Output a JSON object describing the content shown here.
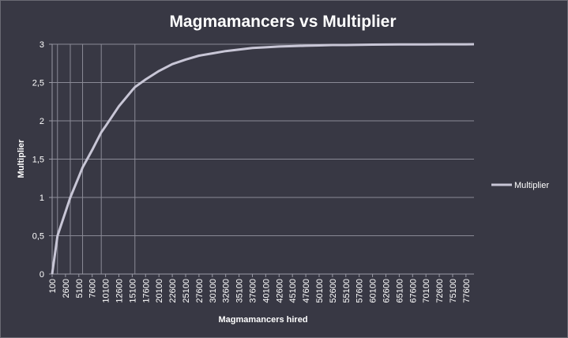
{
  "chart_data": {
    "type": "line",
    "title": "Magmamancers vs Multiplier",
    "xlabel": "Magmamancers  hired",
    "ylabel": "Multiplier",
    "ylim": [
      0,
      3
    ],
    "yticks": [
      "0",
      "0,5",
      "1",
      "1,5",
      "2",
      "2,5",
      "3"
    ],
    "x_tick_labels": [
      "100",
      "2600",
      "5100",
      "7600",
      "10100",
      "12600",
      "15100",
      "17600",
      "20100",
      "22600",
      "25100",
      "27600",
      "30100",
      "32600",
      "35100",
      "37600",
      "40100",
      "42600",
      "45100",
      "47600",
      "50100",
      "52600",
      "55100",
      "57600",
      "60100",
      "62600",
      "65100",
      "67600",
      "70100",
      "72600",
      "75100",
      "77600"
    ],
    "xlim": [
      100,
      79100
    ],
    "vertical_gridlines_x": [
      1100,
      3500,
      5800,
      9300,
      15600
    ],
    "grid": true,
    "legend_position": "right",
    "series": [
      {
        "name": "Multiplier",
        "color": "#c8c6d6",
        "x": [
          100,
          1100,
          2600,
          3500,
          5100,
          5800,
          7600,
          9300,
          10100,
          12600,
          15100,
          15600,
          17600,
          20100,
          22600,
          25100,
          27600,
          30100,
          32600,
          35100,
          37600,
          40100,
          42600,
          45100,
          47600,
          50100,
          52600,
          55100,
          57600,
          60100,
          62600,
          65100,
          67600,
          70100,
          72600,
          75100,
          77600,
          79100
        ],
        "values": [
          0,
          0.5,
          0.81,
          1,
          1.27,
          1.39,
          1.62,
          1.85,
          1.93,
          2.19,
          2.4,
          2.44,
          2.54,
          2.65,
          2.74,
          2.8,
          2.85,
          2.88,
          2.91,
          2.93,
          2.95,
          2.96,
          2.97,
          2.975,
          2.98,
          2.985,
          2.99,
          2.99,
          2.993,
          2.995,
          2.996,
          2.997,
          2.998,
          2.998,
          2.999,
          2.999,
          2.999,
          3.0
        ]
      }
    ]
  }
}
